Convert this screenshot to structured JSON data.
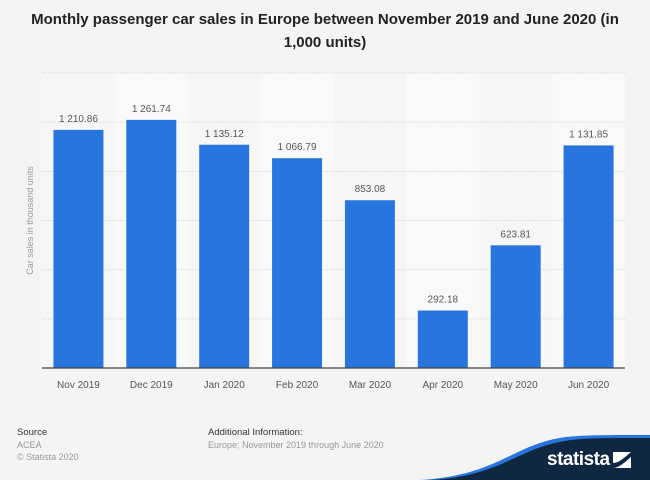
{
  "chart_data": {
    "type": "bar",
    "title": "Monthly passenger car sales in Europe between November 2019 and June 2020 (in 1,000 units)",
    "xlabel": "",
    "ylabel": "Car sales in thousand units",
    "categories": [
      "Nov 2019",
      "Dec 2019",
      "Jan 2020",
      "Feb 2020",
      "Mar 2020",
      "Apr 2020",
      "May 2020",
      "Jun 2020"
    ],
    "values": [
      1210.86,
      1261.74,
      1135.12,
      1066.79,
      853.08,
      292.18,
      623.81,
      1131.85
    ],
    "value_labels": [
      "1 210.86",
      "1 261.74",
      "1 135.12",
      "1 066.79",
      "853.08",
      "292.18",
      "623.81",
      "1 131.85"
    ],
    "ylim": [
      0,
      1500
    ],
    "ytick_step": 250,
    "ytick_labels_visible": false,
    "grid": true,
    "legend": "none",
    "bar_color": "#2876dd"
  },
  "footer": {
    "source_heading": "Source",
    "source_name": "ACEA",
    "copyright": "© Statista 2020",
    "additional_heading": "Additional Information:",
    "additional_text": "Europe; November 2019 through June 2020"
  },
  "brand": {
    "name": "statista",
    "colors": {
      "dark": "#0f2741",
      "accent": "#2876dd"
    }
  }
}
